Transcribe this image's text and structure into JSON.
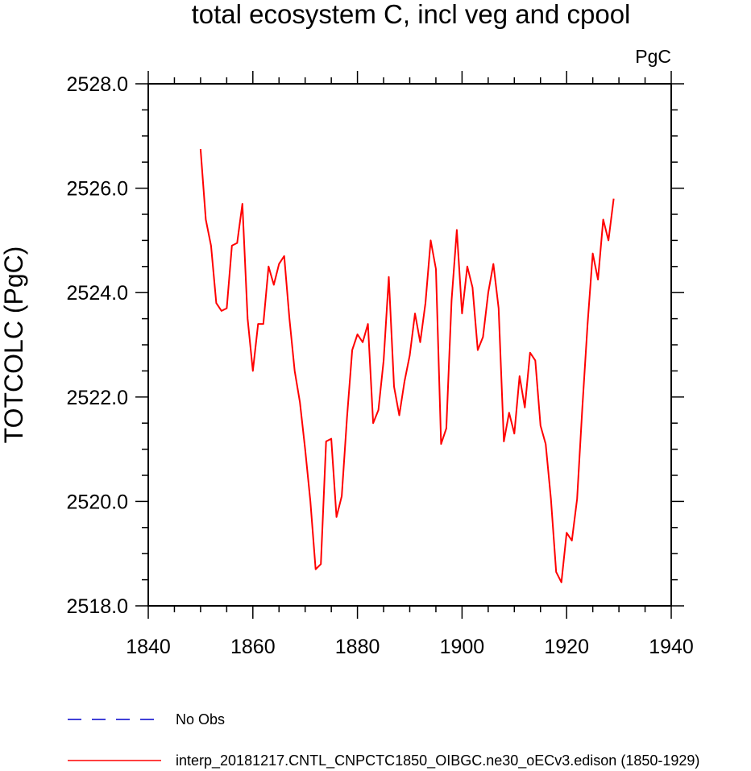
{
  "chart_data": {
    "type": "line",
    "title": "total ecosystem C, incl veg and cpool",
    "units_label": "PgC",
    "ylabel": "TOTCOLC  (PgC)",
    "xlabel": "",
    "xlim": [
      1840,
      1940
    ],
    "ylim": [
      2518,
      2528
    ],
    "x_major_ticks": [
      1840,
      1860,
      1880,
      1900,
      1920,
      1940
    ],
    "x_tick_labels": [
      "1840",
      "1860",
      "1880",
      "1900",
      "1920",
      "1940"
    ],
    "x_minor_step": 5,
    "y_major_ticks": [
      2518,
      2520,
      2522,
      2524,
      2526,
      2528
    ],
    "y_tick_labels": [
      "2518.0",
      "2520.0",
      "2522.0",
      "2524.0",
      "2526.0",
      "2528.0"
    ],
    "y_minor_step": 0.5,
    "grid": false,
    "legend_position": "bottom",
    "series": [
      {
        "name": "No Obs",
        "color": "#0000cc",
        "style": "dashed",
        "x": [],
        "values": []
      },
      {
        "name": "interp_20181217.CNTL_CNPCTC1850_OIBGC.ne30_oECv3.edison (1850-1929)",
        "color": "#ff0000",
        "style": "solid",
        "x": [
          1850,
          1851,
          1852,
          1853,
          1854,
          1855,
          1856,
          1857,
          1858,
          1859,
          1860,
          1861,
          1862,
          1863,
          1864,
          1865,
          1866,
          1867,
          1868,
          1869,
          1870,
          1871,
          1872,
          1873,
          1874,
          1875,
          1876,
          1877,
          1878,
          1879,
          1880,
          1881,
          1882,
          1883,
          1884,
          1885,
          1886,
          1887,
          1888,
          1889,
          1890,
          1891,
          1892,
          1893,
          1894,
          1895,
          1896,
          1897,
          1898,
          1899,
          1900,
          1901,
          1902,
          1903,
          1904,
          1905,
          1906,
          1907,
          1908,
          1909,
          1910,
          1911,
          1912,
          1913,
          1914,
          1915,
          1916,
          1917,
          1918,
          1919,
          1920,
          1921,
          1922,
          1923,
          1924,
          1925,
          1926,
          1927,
          1928,
          1929
        ],
        "values": [
          2526.75,
          2525.4,
          2524.9,
          2523.8,
          2523.65,
          2523.7,
          2524.9,
          2524.95,
          2525.7,
          2523.5,
          2522.5,
          2523.4,
          2523.4,
          2524.5,
          2524.15,
          2524.55,
          2524.7,
          2523.5,
          2522.5,
          2521.9,
          2521.0,
          2520.0,
          2518.7,
          2518.8,
          2521.15,
          2521.2,
          2519.7,
          2520.1,
          2521.6,
          2522.9,
          2523.2,
          2523.05,
          2523.4,
          2521.5,
          2521.75,
          2522.7,
          2524.3,
          2522.2,
          2521.65,
          2522.3,
          2522.8,
          2523.6,
          2523.05,
          2523.8,
          2525.0,
          2524.45,
          2521.1,
          2521.4,
          2523.85,
          2525.2,
          2523.6,
          2524.5,
          2524.1,
          2522.9,
          2523.15,
          2524.0,
          2524.55,
          2523.7,
          2521.15,
          2521.7,
          2521.3,
          2522.4,
          2521.8,
          2522.85,
          2522.7,
          2521.45,
          2521.1,
          2520.05,
          2518.65,
          2518.45,
          2519.4,
          2519.25,
          2520.05,
          2521.8,
          2523.4,
          2524.75,
          2524.25,
          2525.4,
          2525.0,
          2525.8
        ]
      }
    ]
  }
}
